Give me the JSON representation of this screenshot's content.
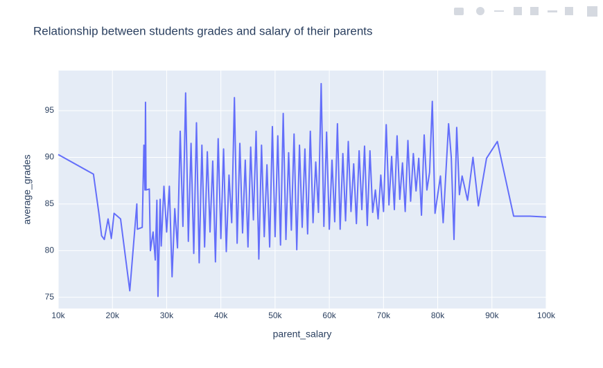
{
  "chart_data": {
    "type": "line",
    "title": "Relationship between students grades and salary of their parents",
    "x_label": "parent_salary",
    "y_label": "average_grades",
    "xlim": [
      10000,
      100000
    ],
    "ylim": [
      73.8,
      99.3
    ],
    "xticks": [
      {
        "value": 10000,
        "label": "10k"
      },
      {
        "value": 20000,
        "label": "20k"
      },
      {
        "value": 30000,
        "label": "30k"
      },
      {
        "value": 40000,
        "label": "40k"
      },
      {
        "value": 50000,
        "label": "50k"
      },
      {
        "value": 60000,
        "label": "60k"
      },
      {
        "value": 70000,
        "label": "70k"
      },
      {
        "value": 80000,
        "label": "80k"
      },
      {
        "value": 90000,
        "label": "90k"
      },
      {
        "value": 100000,
        "label": "100k"
      }
    ],
    "yticks": [
      75,
      80,
      85,
      90,
      95
    ],
    "grid": true,
    "series": [
      {
        "color": "#636efa",
        "x": [
          10000,
          16500,
          17500,
          18000,
          18500,
          19200,
          19800,
          20300,
          21500,
          23200,
          24500,
          24600,
          25500,
          25800,
          26000,
          26100,
          26200,
          26800,
          27000,
          27500,
          27900,
          28200,
          28400,
          28800,
          29000,
          29500,
          30000,
          30500,
          31000,
          31500,
          32000,
          32500,
          33000,
          33500,
          34000,
          34500,
          35000,
          35500,
          36000,
          36500,
          37000,
          37500,
          38000,
          38500,
          39000,
          39500,
          40000,
          40500,
          41000,
          41500,
          42000,
          42500,
          43000,
          43500,
          44000,
          44500,
          45000,
          45500,
          46000,
          46500,
          47000,
          47500,
          48000,
          48500,
          49000,
          49500,
          50000,
          50500,
          51000,
          51500,
          52000,
          52500,
          53000,
          53500,
          54000,
          54500,
          55000,
          55500,
          56000,
          56500,
          57000,
          57500,
          58000,
          58500,
          59000,
          59500,
          60000,
          60500,
          61000,
          61500,
          62000,
          62500,
          63000,
          63500,
          64000,
          64500,
          65000,
          65500,
          66000,
          66500,
          67000,
          67500,
          68000,
          68500,
          69000,
          69500,
          70000,
          70500,
          71000,
          71500,
          72000,
          72500,
          73000,
          73500,
          74000,
          74500,
          75000,
          75500,
          76000,
          76500,
          77000,
          77500,
          78000,
          78500,
          79000,
          79500,
          80500,
          81000,
          82000,
          82500,
          83000,
          83500,
          84000,
          84500,
          85500,
          86500,
          87500,
          89000,
          91000,
          94000,
          97000,
          100000
        ],
        "values": [
          90.3,
          88.2,
          84,
          81.6,
          81.2,
          83.4,
          81.3,
          84,
          83.4,
          75.7,
          85,
          82.3,
          82.5,
          91.3,
          86.5,
          95.9,
          86.5,
          86.6,
          80,
          82,
          79,
          85.4,
          75.1,
          85.5,
          80.5,
          86.9,
          82,
          86.9,
          77.2,
          84.5,
          80.3,
          92.8,
          82.6,
          96.9,
          81,
          91.5,
          79.7,
          93.7,
          78.7,
          91.3,
          80.4,
          90.6,
          82,
          89.6,
          78.8,
          92,
          81.3,
          90.9,
          79.9,
          88.1,
          83,
          96.4,
          80.8,
          91.5,
          81.9,
          89.7,
          80.4,
          91.1,
          83.3,
          92.8,
          79.1,
          91.3,
          81.5,
          89.2,
          80.4,
          93.3,
          81.5,
          92.3,
          80.6,
          94.7,
          81.2,
          90.5,
          82.2,
          92.5,
          80.1,
          91.3,
          82.5,
          90.9,
          81.8,
          92.8,
          83,
          89.5,
          84.1,
          97.9,
          82.6,
          92.7,
          82.3,
          89.7,
          83.1,
          93.6,
          82.3,
          90.4,
          83.2,
          91.7,
          84.2,
          89.3,
          82.9,
          90.7,
          84.4,
          91.2,
          82.7,
          90.7,
          84.1,
          86.5,
          83.4,
          88.1,
          84.2,
          93.5,
          84.9,
          90.1,
          84.4,
          92.3,
          85.5,
          89.4,
          84.2,
          91.8,
          85.3,
          90.4,
          86.4,
          89.9,
          83.8,
          92.4,
          86.5,
          88.4,
          96,
          84,
          88,
          83,
          93.6,
          90,
          81.2,
          93.2,
          86,
          88,
          85.4,
          90,
          84.8,
          89.9,
          91.7,
          83.7,
          83.7,
          83.6
        ]
      }
    ]
  }
}
